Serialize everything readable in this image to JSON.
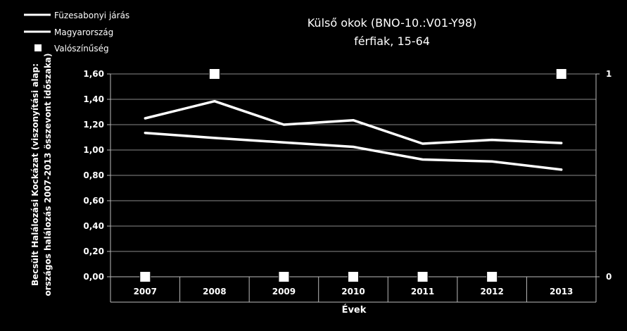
{
  "chart_data": {
    "type": "line",
    "title": "Külső okok (BNO-10.:V01-Y98)",
    "subtitle": "férfiak, 15-64",
    "xlabel": "Évek",
    "ylabel_line1": "Becsült Halálozási Kockázat (viszonyítási alap:",
    "ylabel_line2": "országos halálozás 2007-2013 összevont időszaka)",
    "categories": [
      "2007",
      "2008",
      "2009",
      "2010",
      "2011",
      "2012",
      "2013"
    ],
    "y_ticks": [
      "0,00",
      "0,20",
      "0,40",
      "0,60",
      "0,80",
      "1,00",
      "1,20",
      "1,40",
      "1,60"
    ],
    "ylim": [
      0,
      1.6
    ],
    "y2_ticks": [
      "0",
      "1"
    ],
    "y2lim": [
      0,
      1
    ],
    "grid": true,
    "legend_position": "top-left",
    "series": [
      {
        "name": "Füzesabonyi járás",
        "kind": "line",
        "color": "#ffffff",
        "values": [
          1.25,
          1.385,
          1.2,
          1.235,
          1.05,
          1.08,
          1.055
        ]
      },
      {
        "name": "Magyarország",
        "kind": "line",
        "color": "#ffffff",
        "values": [
          1.135,
          1.095,
          1.06,
          1.025,
          0.925,
          0.91,
          0.845
        ]
      },
      {
        "name": "Valószínűség",
        "kind": "marker",
        "axis": "secondary",
        "color": "#ffffff",
        "values": [
          0,
          1,
          0,
          0,
          0,
          0,
          1
        ]
      }
    ]
  }
}
